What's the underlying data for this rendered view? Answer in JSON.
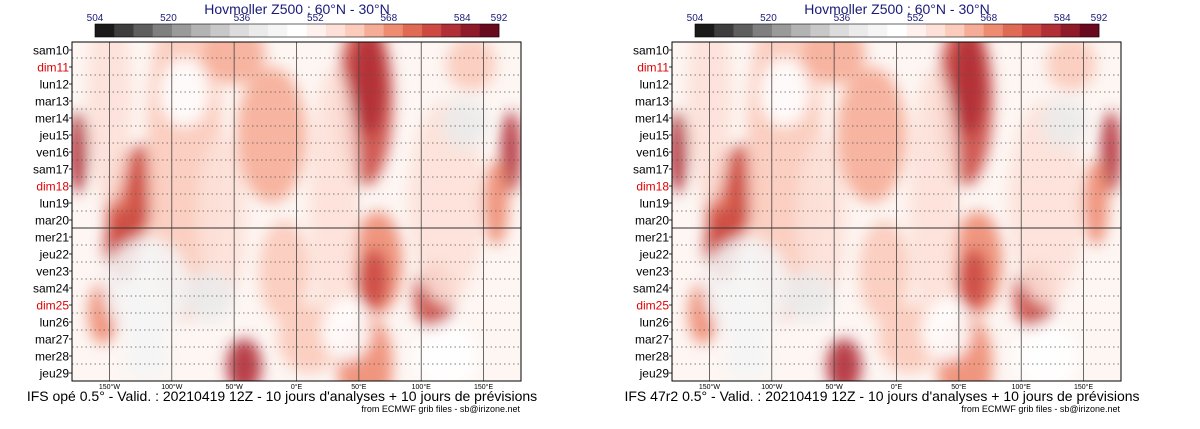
{
  "chart_data": [
    {
      "type": "heatmap",
      "title": "Hovmoller Z500 : 60°N - 30°N",
      "caption": "IFS opé 0.5° - Valid. : 20210419 12Z - 10 jours d'analyses + 10 jours de prévisions",
      "credit": "from ECMWF grib files - sb@irizone.net",
      "colorbar_ticks": [
        "504",
        "520",
        "536",
        "552",
        "568",
        "584",
        "592"
      ],
      "y_labels": [
        "sam10",
        "dim11",
        "lun12",
        "mar13",
        "mer14",
        "jeu15",
        "ven16",
        "sam17",
        "dim18",
        "lun19",
        "mar20",
        "mer21",
        "jeu22",
        "ven23",
        "sam24",
        "dim25",
        "lun26",
        "mar27",
        "mer28",
        "jeu29"
      ],
      "x_labels": [
        "150°W",
        "100°W",
        "50°W",
        "0°E",
        "50°E",
        "100°E",
        "150°E"
      ],
      "x_values": [
        -150,
        -100,
        -50,
        0,
        50,
        100,
        150
      ],
      "xlim": [
        -180,
        180
      ],
      "analysis_forecast_split": "mar20"
    },
    {
      "type": "heatmap",
      "title": "Hovmoller Z500 : 60°N - 30°N",
      "caption": "IFS 47r2 0.5° - Valid. : 20210419 12Z - 10 jours d'analyses + 10 jours de prévisions",
      "credit": "from ECMWF grib files - sb@irizone.net",
      "colorbar_ticks": [
        "504",
        "520",
        "536",
        "552",
        "568",
        "584",
        "592"
      ],
      "y_labels": [
        "sam10",
        "dim11",
        "lun12",
        "mar13",
        "mer14",
        "jeu15",
        "ven16",
        "sam17",
        "dim18",
        "lun19",
        "mar20",
        "mer21",
        "jeu22",
        "ven23",
        "sam24",
        "dim25",
        "lun26",
        "mar27",
        "mer28",
        "jeu29"
      ],
      "x_labels": [
        "150°W",
        "100°W",
        "50°W",
        "0°E",
        "50°E",
        "100°E",
        "150°E"
      ],
      "x_values": [
        -150,
        -100,
        -50,
        0,
        50,
        100,
        150
      ],
      "xlim": [
        -180,
        180
      ],
      "analysis_forecast_split": "mar20"
    }
  ],
  "colors": {
    "colorbar": [
      "#1a1a1a",
      "#3d3d3d",
      "#5e5e5e",
      "#7f7f7f",
      "#9a9a9a",
      "#b3b3b3",
      "#c8c8c8",
      "#dcdcdc",
      "#ebebeb",
      "#f5f5f5",
      "#ffffff",
      "#fff2ee",
      "#fde1d8",
      "#fbcbbb",
      "#f6ad97",
      "#ee8c72",
      "#e06b55",
      "#cc4a42",
      "#b12f36",
      "#8e1a2a",
      "#6a0a1e"
    ],
    "sunday": "#e00000",
    "title": "#1a1a7a"
  }
}
